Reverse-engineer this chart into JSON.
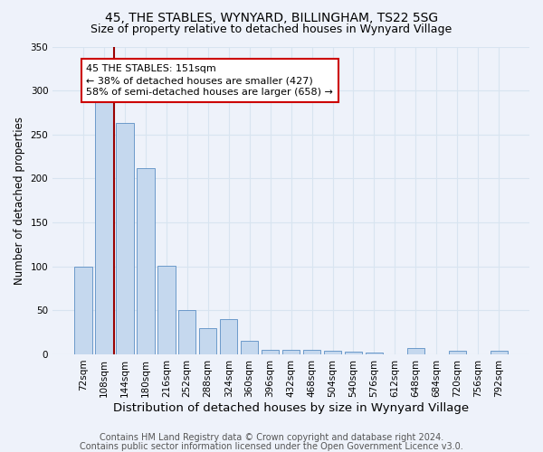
{
  "title1": "45, THE STABLES, WYNYARD, BILLINGHAM, TS22 5SG",
  "title2": "Size of property relative to detached houses in Wynyard Village",
  "xlabel": "Distribution of detached houses by size in Wynyard Village",
  "ylabel": "Number of detached properties",
  "bar_color": "#c5d8ee",
  "bar_edge_color": "#5b8ec4",
  "background_color": "#eef2fa",
  "grid_color": "#d8e4f0",
  "categories": [
    "72sqm",
    "108sqm",
    "144sqm",
    "180sqm",
    "216sqm",
    "252sqm",
    "288sqm",
    "324sqm",
    "360sqm",
    "396sqm",
    "432sqm",
    "468sqm",
    "504sqm",
    "540sqm",
    "576sqm",
    "612sqm",
    "648sqm",
    "684sqm",
    "720sqm",
    "756sqm",
    "792sqm"
  ],
  "values": [
    100,
    288,
    263,
    212,
    101,
    50,
    30,
    40,
    15,
    5,
    5,
    5,
    4,
    3,
    2,
    0,
    7,
    0,
    4,
    0,
    4
  ],
  "ylim": [
    0,
    350
  ],
  "yticks": [
    0,
    50,
    100,
    150,
    200,
    250,
    300,
    350
  ],
  "annotation_text": "45 THE STABLES: 151sqm\n← 38% of detached houses are smaller (427)\n58% of semi-detached houses are larger (658) →",
  "vline_x": 1.5,
  "vline_color": "#990000",
  "annotation_box_color": "#ffffff",
  "annotation_box_edge_color": "#cc0000",
  "footer1": "Contains HM Land Registry data © Crown copyright and database right 2024.",
  "footer2": "Contains public sector information licensed under the Open Government Licence v3.0.",
  "title1_fontsize": 10,
  "title2_fontsize": 9,
  "xlabel_fontsize": 9.5,
  "ylabel_fontsize": 8.5,
  "tick_fontsize": 7.5,
  "annotation_fontsize": 8,
  "footer_fontsize": 7
}
